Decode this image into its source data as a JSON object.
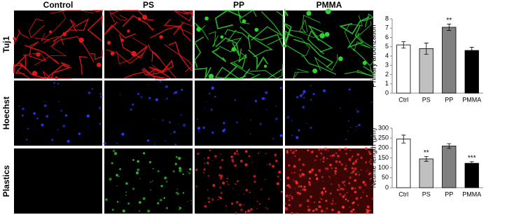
{
  "image_grid": {
    "columns": [
      "Control",
      "PS",
      "PP",
      "PMMA"
    ],
    "rows": [
      "Tuj1",
      "Hoechst",
      "Plastics"
    ]
  },
  "chart_data": [
    {
      "type": "bar",
      "ylabel": "Primary arborization",
      "categories": [
        "Ctrl",
        "PS",
        "PP",
        "PMMA"
      ],
      "values": [
        5.2,
        4.8,
        7.1,
        4.6
      ],
      "errors": [
        0.35,
        0.6,
        0.35,
        0.35
      ],
      "significance": [
        null,
        null,
        "**",
        null
      ],
      "colors": [
        "#ffffff",
        "#c0c0c0",
        "#808080",
        "#000000"
      ],
      "ylim": [
        0,
        8
      ],
      "yticks": [
        0,
        1,
        2,
        3,
        4,
        5,
        6,
        7,
        8
      ]
    },
    {
      "type": "bar",
      "ylabel": "Neurite length (μm)",
      "categories": [
        "Ctrl",
        "PS",
        "PP",
        "PMMA"
      ],
      "values": [
        245,
        145,
        210,
        123
      ],
      "errors": [
        20,
        12,
        12,
        8
      ],
      "significance": [
        null,
        "**",
        null,
        "***"
      ],
      "colors": [
        "#ffffff",
        "#c0c0c0",
        "#808080",
        "#000000"
      ],
      "ylim": [
        0,
        300
      ],
      "yticks": [
        0,
        50,
        100,
        150,
        200,
        250,
        300
      ]
    }
  ]
}
